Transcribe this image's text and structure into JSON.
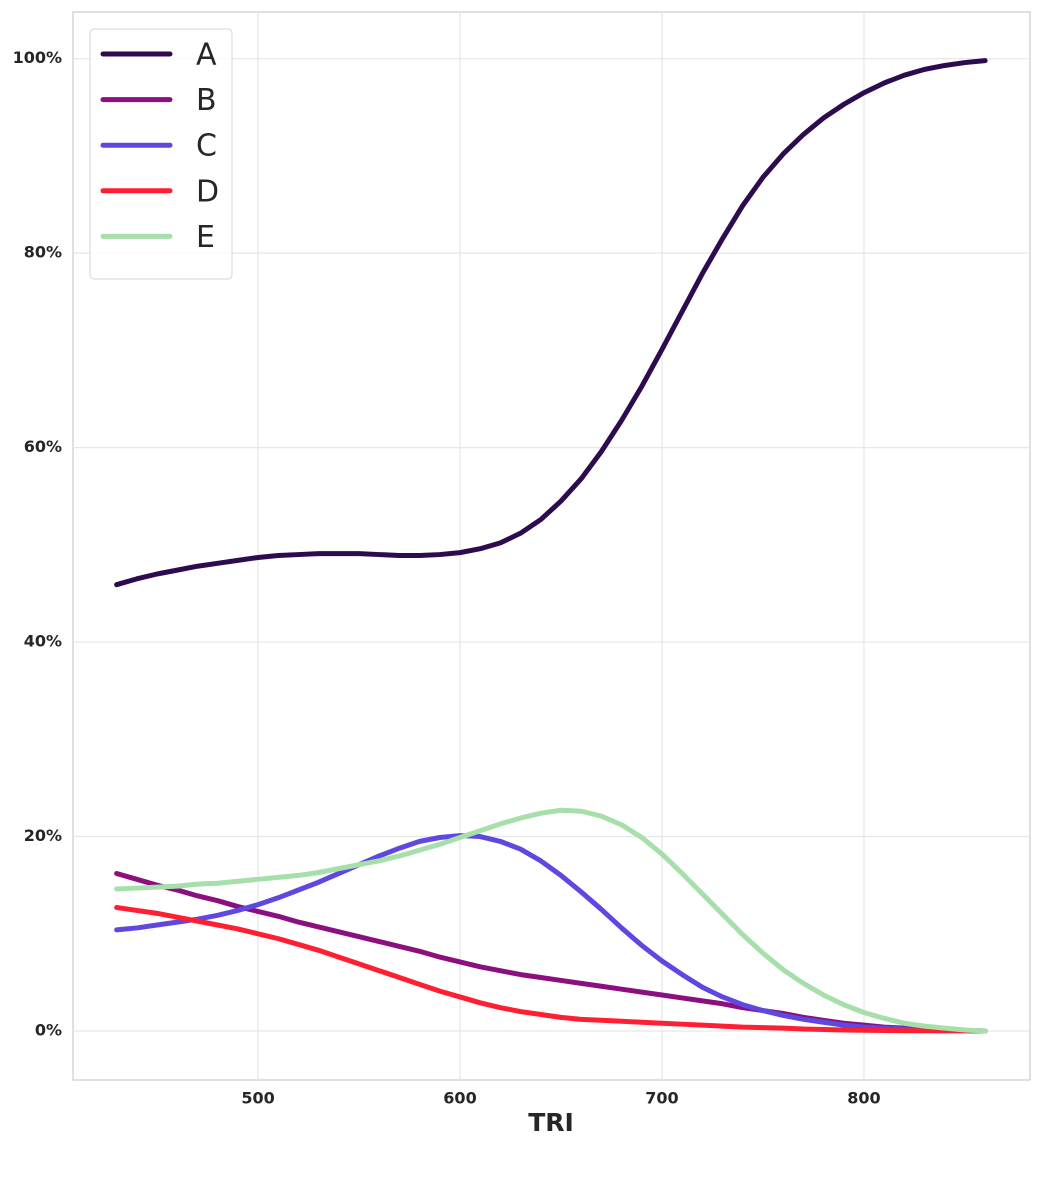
{
  "chart_data": {
    "type": "line",
    "x_label": "TRI",
    "x": [
      430,
      440,
      450,
      460,
      470,
      480,
      490,
      500,
      510,
      520,
      530,
      540,
      550,
      560,
      570,
      580,
      590,
      600,
      610,
      620,
      630,
      640,
      650,
      660,
      670,
      680,
      690,
      700,
      710,
      720,
      730,
      740,
      750,
      760,
      770,
      780,
      790,
      800,
      810,
      820,
      830,
      840,
      850,
      860
    ],
    "series": [
      {
        "name": "A",
        "color": "#2e0a4e",
        "values": [
          45.9,
          46.5,
          47.0,
          47.4,
          47.8,
          48.1,
          48.4,
          48.7,
          48.9,
          49.0,
          49.1,
          49.1,
          49.1,
          49.0,
          48.9,
          48.9,
          49.0,
          49.2,
          49.6,
          50.2,
          51.2,
          52.6,
          54.5,
          56.8,
          59.6,
          62.8,
          66.3,
          70.1,
          74.0,
          77.9,
          81.5,
          84.9,
          87.8,
          90.2,
          92.2,
          93.9,
          95.3,
          96.5,
          97.5,
          98.3,
          98.9,
          99.3,
          99.6,
          99.8
        ]
      },
      {
        "name": "B",
        "color": "#8b0f7f",
        "values": [
          16.2,
          15.6,
          15.0,
          14.5,
          13.9,
          13.4,
          12.8,
          12.3,
          11.8,
          11.2,
          10.7,
          10.2,
          9.7,
          9.2,
          8.7,
          8.2,
          7.6,
          7.1,
          6.6,
          6.2,
          5.8,
          5.5,
          5.2,
          4.9,
          4.6,
          4.3,
          4.0,
          3.7,
          3.4,
          3.1,
          2.8,
          2.4,
          2.1,
          1.8,
          1.4,
          1.1,
          0.8,
          0.6,
          0.4,
          0.3,
          0.2,
          0.1,
          0.05,
          0
        ]
      },
      {
        "name": "C",
        "color": "#5f48e0",
        "values": [
          10.4,
          10.6,
          10.9,
          11.2,
          11.5,
          11.9,
          12.4,
          13.0,
          13.7,
          14.5,
          15.3,
          16.2,
          17.1,
          18.0,
          18.8,
          19.5,
          19.9,
          20.1,
          20.0,
          19.5,
          18.7,
          17.5,
          16.0,
          14.3,
          12.5,
          10.6,
          8.8,
          7.2,
          5.8,
          4.5,
          3.5,
          2.7,
          2.1,
          1.6,
          1.2,
          0.9,
          0.6,
          0.4,
          0.3,
          0.2,
          0.1,
          0.05,
          0.02,
          0
        ]
      },
      {
        "name": "D",
        "color": "#ff1f33",
        "values": [
          12.7,
          12.4,
          12.1,
          11.7,
          11.3,
          10.9,
          10.5,
          10.0,
          9.5,
          8.9,
          8.3,
          7.6,
          6.9,
          6.2,
          5.5,
          4.8,
          4.1,
          3.5,
          2.9,
          2.4,
          2.0,
          1.7,
          1.4,
          1.2,
          1.1,
          1.0,
          0.9,
          0.8,
          0.7,
          0.6,
          0.5,
          0.4,
          0.35,
          0.3,
          0.2,
          0.15,
          0.1,
          0.08,
          0.05,
          0.03,
          0.02,
          0.01,
          0.01,
          0
        ]
      },
      {
        "name": "E",
        "color": "#a6dfa9",
        "values": [
          14.6,
          14.7,
          14.8,
          14.9,
          15.1,
          15.2,
          15.4,
          15.6,
          15.8,
          16.0,
          16.3,
          16.7,
          17.1,
          17.5,
          18.0,
          18.6,
          19.2,
          19.9,
          20.6,
          21.3,
          21.9,
          22.4,
          22.7,
          22.6,
          22.1,
          21.2,
          19.9,
          18.2,
          16.2,
          14.1,
          12.0,
          9.9,
          8.0,
          6.3,
          4.9,
          3.7,
          2.7,
          1.9,
          1.3,
          0.8,
          0.5,
          0.3,
          0.1,
          0
        ]
      }
    ],
    "xlim": [
      408.4,
      882.2
    ],
    "ylim": [
      -5.04,
      104.8
    ],
    "xticks": [
      500,
      600,
      700,
      800
    ],
    "yticks": [
      {
        "value": 0,
        "label": "0%"
      },
      {
        "value": 20,
        "label": "20%"
      },
      {
        "value": 40,
        "label": "40%"
      },
      {
        "value": 60,
        "label": "60%"
      },
      {
        "value": 80,
        "label": "80%"
      },
      {
        "value": 100,
        "label": "100%"
      }
    ],
    "grid": true,
    "legend_position": "upper-left"
  }
}
